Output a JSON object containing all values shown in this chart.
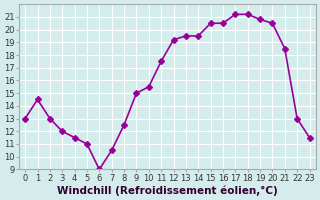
{
  "x": [
    0,
    1,
    2,
    3,
    4,
    5,
    6,
    7,
    8,
    9,
    10,
    11,
    12,
    13,
    14,
    15,
    16,
    17,
    18,
    19,
    20,
    21,
    22,
    23
  ],
  "y": [
    13,
    14.5,
    13,
    12,
    11.5,
    11,
    9,
    10.5,
    12.5,
    15,
    15.5,
    17.5,
    19.2,
    19.5,
    19.5,
    20.5,
    20.5,
    21.2,
    21.2,
    20.8,
    20.5,
    18.5,
    13,
    11.5
  ],
  "line_color": "#990099",
  "marker": "D",
  "marker_size": 3,
  "line_width": 1.2,
  "xlabel": "Windchill (Refroidissement éolien,°C)",
  "xlabel_fontsize": 7.5,
  "ylim": [
    9,
    22
  ],
  "xlim": [
    -0.5,
    23.5
  ],
  "yticks": [
    9,
    10,
    11,
    12,
    13,
    14,
    15,
    16,
    17,
    18,
    19,
    20,
    21
  ],
  "xticks": [
    0,
    1,
    2,
    3,
    4,
    5,
    6,
    7,
    8,
    9,
    10,
    11,
    12,
    13,
    14,
    15,
    16,
    17,
    18,
    19,
    20,
    21,
    22,
    23
  ],
  "xtick_labels": [
    "0",
    "1",
    "2",
    "3",
    "4",
    "5",
    "6",
    "7",
    "8",
    "9",
    "10",
    "11",
    "12",
    "13",
    "14",
    "15",
    "16",
    "17",
    "18",
    "19",
    "20",
    "21",
    "22",
    "23"
  ],
  "background_color": "#d4ecec",
  "grid_color": "#ffffff",
  "tick_fontsize": 6.0
}
